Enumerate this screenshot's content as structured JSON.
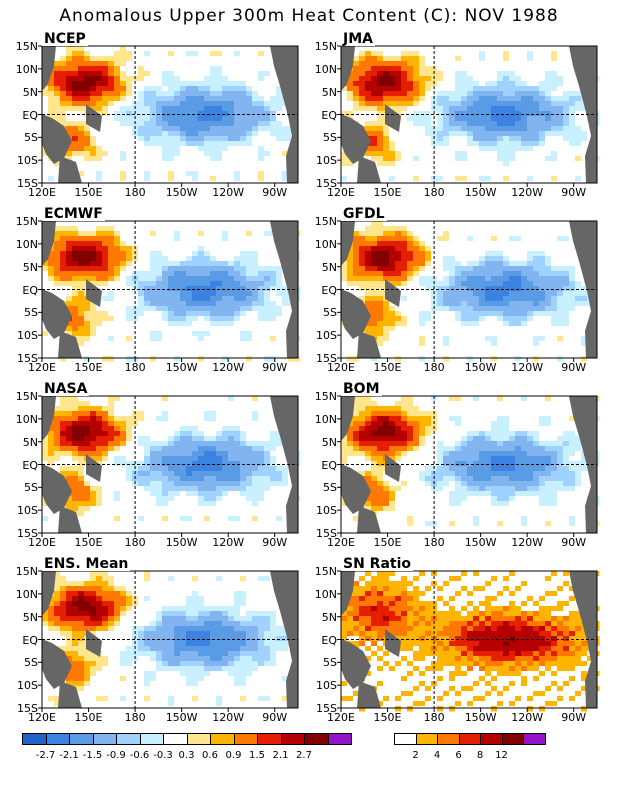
{
  "title": "Anomalous Upper 300m Heat Content (C): NOV 1988",
  "panels": [
    {
      "name": "NCEP",
      "kind": "anom"
    },
    {
      "name": "JMA",
      "kind": "anom"
    },
    {
      "name": "ECMWF",
      "kind": "anom"
    },
    {
      "name": "GFDL",
      "kind": "anom"
    },
    {
      "name": "NASA",
      "kind": "anom"
    },
    {
      "name": "BOM",
      "kind": "anom"
    },
    {
      "name": "ENS. Mean",
      "kind": "anom"
    },
    {
      "name": "SN Ratio",
      "kind": "sn"
    }
  ],
  "axes": {
    "lat_labels": [
      "15N",
      "10N",
      "5N",
      "EQ",
      "5S",
      "10S",
      "15S"
    ],
    "lon_labels": [
      "120E",
      "150E",
      "180",
      "150W",
      "120W",
      "90W"
    ]
  },
  "colors": {
    "land": "#666666",
    "anom_scale": [
      "#1f64c8",
      "#3c82e1",
      "#5a9be6",
      "#82b4f0",
      "#a0d2ff",
      "#c8f0ff",
      "#ffffff",
      "#ffe68c",
      "#ffb400",
      "#ff7800",
      "#e61e00",
      "#b40000",
      "#820000",
      "#9614c8"
    ],
    "sn_scale": [
      "#ffffff",
      "#ffb400",
      "#ff7800",
      "#e61e00",
      "#b40000",
      "#820000",
      "#9614c8"
    ]
  },
  "colorbar_anom": {
    "labels": [
      "-2.7",
      "-2.1",
      "-1.5",
      "-0.9",
      "-0.6",
      "-0.3",
      "0.3",
      "0.6",
      "0.9",
      "1.5",
      "2.1",
      "2.7"
    ]
  },
  "colorbar_sn": {
    "labels": [
      "2",
      "4",
      "6",
      "8",
      "12"
    ]
  }
}
